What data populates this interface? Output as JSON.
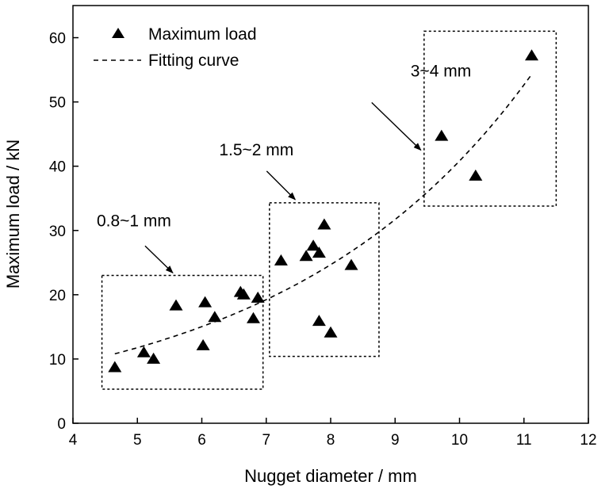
{
  "chart_data": {
    "type": "scatter",
    "xlabel": "Nugget diameter / mm",
    "ylabel": "Maximum load / kN",
    "xlim": [
      4,
      12
    ],
    "ylim": [
      0,
      65
    ],
    "xticks": [
      4,
      5,
      6,
      7,
      8,
      9,
      10,
      11,
      12
    ],
    "yticks": [
      0,
      10,
      20,
      30,
      40,
      50,
      60
    ],
    "grid": false,
    "legend_position": "top-left",
    "series": [
      {
        "name": "Maximum load",
        "marker": "triangle",
        "points": [
          [
            4.65,
            8.7
          ],
          [
            5.1,
            11.0
          ],
          [
            5.25,
            10.0
          ],
          [
            5.6,
            18.3
          ],
          [
            6.02,
            12.1
          ],
          [
            6.05,
            18.8
          ],
          [
            6.2,
            16.5
          ],
          [
            6.6,
            20.4
          ],
          [
            6.65,
            20.0
          ],
          [
            6.8,
            16.3
          ],
          [
            6.87,
            19.5
          ],
          [
            7.23,
            25.3
          ],
          [
            7.62,
            26.0
          ],
          [
            7.73,
            27.6
          ],
          [
            7.82,
            26.5
          ],
          [
            7.82,
            15.9
          ],
          [
            7.9,
            30.9
          ],
          [
            8.0,
            14.1
          ],
          [
            8.32,
            24.6
          ],
          [
            9.72,
            44.7
          ],
          [
            10.25,
            38.5
          ],
          [
            11.12,
            57.2
          ]
        ]
      },
      {
        "name": "Fitting curve",
        "style": "dashed",
        "curve": {
          "x_range": [
            4.65,
            11.12
          ],
          "anchors": [
            [
              4.65,
              10.8
            ],
            [
              6.95,
              19.0
            ],
            [
              11.12,
              54.3
            ]
          ]
        }
      }
    ],
    "annotations": [
      {
        "text": "0.8~1 mm",
        "box_x": [
          4.45,
          6.95
        ],
        "box_y": [
          5.3,
          23.0
        ],
        "arrow_to": [
          5.55,
          23.4
        ]
      },
      {
        "text": "1.5~2 mm",
        "box_x": [
          7.05,
          8.75
        ],
        "box_y": [
          10.4,
          34.3
        ],
        "arrow_to": [
          7.45,
          34.8
        ]
      },
      {
        "text": "3~4 mm",
        "box_x": [
          9.45,
          11.5
        ],
        "box_y": [
          33.8,
          61.0
        ],
        "arrow_to": [
          9.4,
          42.5
        ]
      }
    ]
  }
}
